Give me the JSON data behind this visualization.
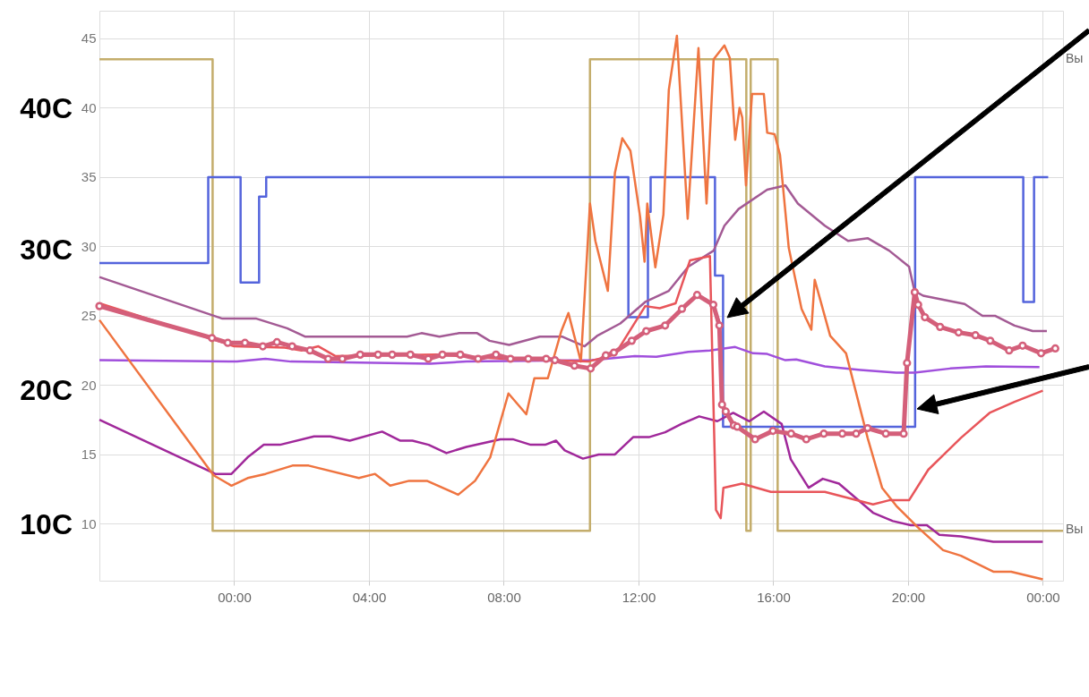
{
  "chart_data": {
    "type": "line",
    "xlim": [
      -4,
      24.6
    ],
    "ylim": [
      5.9,
      47
    ],
    "xticks": [
      {
        "value": 0,
        "label": "00:00"
      },
      {
        "value": 4,
        "label": "04:00"
      },
      {
        "value": 8,
        "label": "08:00"
      },
      {
        "value": 12,
        "label": "12:00"
      },
      {
        "value": 16,
        "label": "16:00"
      },
      {
        "value": 20,
        "label": "20:00"
      },
      {
        "value": 24,
        "label": "00:00"
      }
    ],
    "yticks": [
      10,
      15,
      20,
      25,
      30,
      35,
      40,
      45
    ],
    "grid": true,
    "legend": false,
    "annotations": [
      "40C",
      "30C",
      "20C",
      "10C",
      "Вы",
      "Вы"
    ],
    "series": [
      {
        "type": "step",
        "color": "#c4ad6c",
        "marker": "none",
        "x": [
          -4,
          -0.64,
          10.56,
          15.2,
          15.33,
          16.13,
          24.6
        ],
        "values": [
          43.5,
          9.5,
          43.5,
          9.5,
          43.5,
          9.5,
          9.5
        ]
      },
      {
        "type": "step",
        "color": "#5464dc",
        "marker": "none",
        "x": [
          -4,
          -0.77,
          0.19,
          0.74,
          0.95,
          11.7,
          12.28,
          12.36,
          14.27,
          14.51,
          20.21,
          23.42,
          23.74,
          24.16
        ],
        "values": [
          28.8,
          35,
          27.4,
          33.6,
          35,
          24.9,
          32.5,
          35,
          27.9,
          17,
          35,
          26,
          35,
          35
        ]
      },
      {
        "type": "line",
        "color": "#a35a94",
        "marker": "none",
        "x": [
          -4,
          -0.35,
          0.66,
          1.57,
          2.1,
          5.13,
          5.56,
          6.09,
          6.68,
          7.21,
          7.58,
          8.16,
          9.07,
          9.73,
          10.4,
          10.77,
          11.46,
          12.2,
          12.9,
          13.48,
          14.23,
          14.55,
          14.97,
          15.82,
          16.36,
          16.73,
          17.53,
          18.22,
          18.8,
          19.44,
          20.03,
          20.19,
          20.45,
          21.68,
          22.21,
          22.58,
          23.16,
          23.7,
          24.12
        ],
        "values": [
          27.8,
          24.8,
          24.8,
          24.1,
          23.5,
          23.5,
          23.75,
          23.5,
          23.75,
          23.75,
          23.2,
          22.9,
          23.5,
          23.5,
          22.8,
          23.55,
          24.45,
          26.0,
          26.8,
          28.55,
          29.7,
          31.5,
          32.7,
          34.1,
          34.4,
          33.1,
          31.5,
          30.4,
          30.6,
          29.7,
          28.55,
          26.8,
          26.45,
          25.85,
          25.0,
          25.0,
          24.3,
          23.9,
          23.9
        ]
      },
      {
        "type": "line",
        "color": "#a04fdc",
        "marker": "none",
        "x": [
          -4,
          0.08,
          0.93,
          1.68,
          5.82,
          6.89,
          10.61,
          11.89,
          12.53,
          13.48,
          14.12,
          14.87,
          15.4,
          15.82,
          16.36,
          16.68,
          17.53,
          18.59,
          19.65,
          20.19,
          21.25,
          22.31,
          23.9
        ],
        "values": [
          21.8,
          21.7,
          21.9,
          21.7,
          21.55,
          21.7,
          21.8,
          22.1,
          22.05,
          22.4,
          22.5,
          22.75,
          22.3,
          22.25,
          21.8,
          21.85,
          21.35,
          21.1,
          20.9,
          20.9,
          21.2,
          21.35,
          21.3
        ]
      },
      {
        "type": "line",
        "color": "#a0289a",
        "marker": "none",
        "x": [
          -4,
          -0.56,
          -0.08,
          0.4,
          0.88,
          1.36,
          2.37,
          2.85,
          3.43,
          4.39,
          4.92,
          5.29,
          5.77,
          6.3,
          6.89,
          7.9,
          8.27,
          8.8,
          9.23,
          9.55,
          9.81,
          10.35,
          10.82,
          11.3,
          11.84,
          12.31,
          12.79,
          13.27,
          13.8,
          14.34,
          14.81,
          15.29,
          15.72,
          16.25,
          16.52,
          17.05,
          17.47,
          17.95,
          18.96,
          19.55,
          20.08,
          20.56,
          20.93,
          21.57,
          22.53,
          24.0
        ],
        "values": [
          17.5,
          13.6,
          13.6,
          14.8,
          15.7,
          15.7,
          16.3,
          16.3,
          16.0,
          16.65,
          16.0,
          16.0,
          15.7,
          15.1,
          15.55,
          16.1,
          16.1,
          15.7,
          15.7,
          16.0,
          15.3,
          14.7,
          15.0,
          15.0,
          16.25,
          16.25,
          16.6,
          17.2,
          17.75,
          17.4,
          18.0,
          17.4,
          18.1,
          17.2,
          14.65,
          12.6,
          13.25,
          12.9,
          10.8,
          10.2,
          9.9,
          9.9,
          9.2,
          9.1,
          8.7,
          8.7
        ]
      },
      {
        "type": "line",
        "color": "#ef7440",
        "marker": "none",
        "x": [
          -4,
          -0.61,
          -0.08,
          0.4,
          0.93,
          1.73,
          2.21,
          3.7,
          4.18,
          4.63,
          5.19,
          5.72,
          6.65,
          7.15,
          7.6,
          8.14,
          8.67,
          8.91,
          9.31,
          9.71,
          9.92,
          10.29,
          10.56,
          10.72,
          11.09,
          11.3,
          11.52,
          11.76,
          12.05,
          12.18,
          12.26,
          12.5,
          12.74,
          12.9,
          13.14,
          13.46,
          13.78,
          14.02,
          14.23,
          14.55,
          14.71,
          14.87,
          15.0,
          15.08,
          15.19,
          15.37,
          15.72,
          15.82,
          16.04,
          16.2,
          16.46,
          16.84,
          17.13,
          17.23,
          17.69,
          18.16,
          18.8,
          19.23,
          19.65,
          20.29,
          21.04,
          21.57,
          22.53,
          23.06,
          24.0
        ],
        "values": [
          24.7,
          13.5,
          12.75,
          13.3,
          13.6,
          14.2,
          14.2,
          13.3,
          13.6,
          12.75,
          13.1,
          13.1,
          12.1,
          13.1,
          14.8,
          19.4,
          17.9,
          20.5,
          20.5,
          23.9,
          25.2,
          21.7,
          33.1,
          30.4,
          26.8,
          35.3,
          37.8,
          36.9,
          32.1,
          28.9,
          33.1,
          28.5,
          32.3,
          41.3,
          45.2,
          32.0,
          44.3,
          33.1,
          43.5,
          44.5,
          43.6,
          37.7,
          40.0,
          39.3,
          34.4,
          41.0,
          41.0,
          38.2,
          38.1,
          36.6,
          29.9,
          25.5,
          24.0,
          27.6,
          23.55,
          22.3,
          16.2,
          12.6,
          11.3,
          9.75,
          8.1,
          7.7,
          6.55,
          6.55,
          6.0
        ]
      },
      {
        "type": "line",
        "color": "#e8555a",
        "marker": "none",
        "x": [
          -4,
          -0.5,
          0,
          1.5,
          2,
          2.5,
          3,
          6,
          8,
          10.5,
          11.3,
          12.2,
          12.63,
          13.1,
          13.53,
          14.12,
          14.3,
          14.44,
          14.52,
          15.07,
          15.93,
          17.53,
          18.96,
          19.44,
          20.03,
          20.6,
          21.57,
          22.42,
          23.16,
          24.0
        ],
        "values": [
          25.9,
          23.2,
          22.8,
          22.7,
          22.5,
          22.8,
          22.1,
          22.2,
          21.9,
          21.7,
          22.2,
          25.7,
          25.55,
          25.9,
          29.0,
          29.3,
          11.0,
          10.4,
          12.6,
          12.9,
          12.3,
          12.3,
          11.4,
          11.7,
          11.7,
          13.9,
          16.2,
          18.0,
          18.8,
          19.6
        ]
      },
      {
        "type": "line",
        "color": "#d45f7a",
        "marker": "circle",
        "x": [
          -4,
          -0.66,
          -0.19,
          0.32,
          0.85,
          1.27,
          1.72,
          2.25,
          2.79,
          3.21,
          3.74,
          4.27,
          4.69,
          5.23,
          5.76,
          6.18,
          6.71,
          7.24,
          7.77,
          8.2,
          8.73,
          9.26,
          9.52,
          10.1,
          10.58,
          11.03,
          11.27,
          11.8,
          12.23,
          12.79,
          13.29,
          13.74,
          14.22,
          14.4,
          14.48,
          14.59,
          14.83,
          14.93,
          15.46,
          15.99,
          16.53,
          16.98,
          17.5,
          18.05,
          18.46,
          18.8,
          19.34,
          19.87,
          19.97,
          20.2,
          20.3,
          20.5,
          20.95,
          21.5,
          22.0,
          22.44,
          23.0,
          23.4,
          23.95,
          24.37
        ],
        "values": [
          25.7,
          23.4,
          23.05,
          23.05,
          22.8,
          23.1,
          22.8,
          22.5,
          21.9,
          21.9,
          22.2,
          22.2,
          22.2,
          22.2,
          21.9,
          22.2,
          22.2,
          21.9,
          22.2,
          21.9,
          21.9,
          21.9,
          21.8,
          21.4,
          21.2,
          22.15,
          22.35,
          23.2,
          23.9,
          24.3,
          25.5,
          26.5,
          25.8,
          24.3,
          18.6,
          18.1,
          17.1,
          17.0,
          16.1,
          16.7,
          16.5,
          16.1,
          16.5,
          16.5,
          16.5,
          16.9,
          16.5,
          16.5,
          21.6,
          26.7,
          25.8,
          24.9,
          24.2,
          23.8,
          23.6,
          23.2,
          22.5,
          22.85,
          22.3,
          22.65
        ]
      }
    ]
  }
}
